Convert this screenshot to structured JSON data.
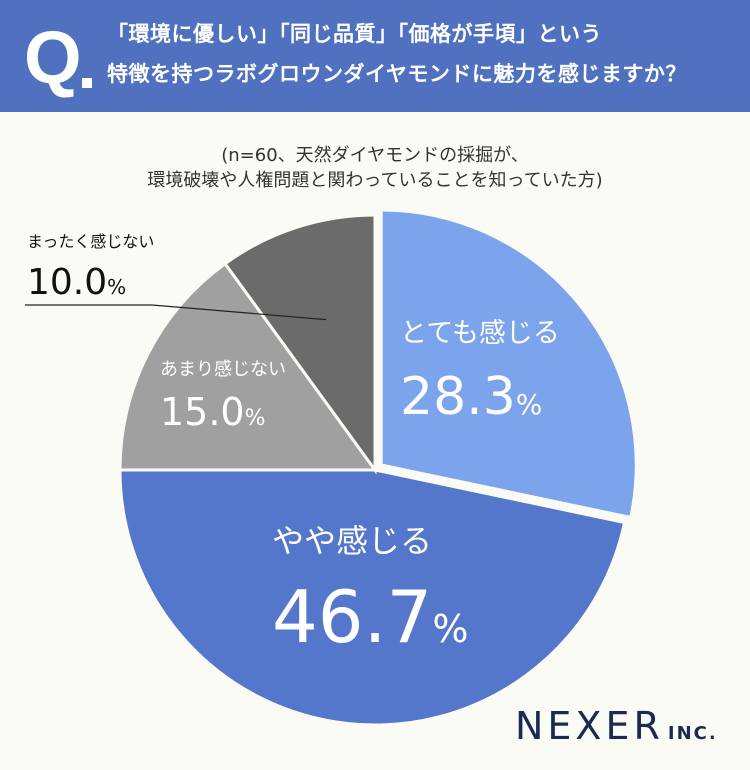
{
  "question": {
    "mark": "Q",
    "line1": "「環境に優しい」「同じ品質」「価格が手頃」という",
    "line2": "特徴を持つラボグロウンダイヤモンドに魅力を感じますか？"
  },
  "note": {
    "line1": "(n=60、天然ダイヤモンドの採掘が、",
    "line2": "環境破壊や人権問題と関わっていることを知っていた方)"
  },
  "chart_data": {
    "type": "pie",
    "start": "12 o'clock, clockwise",
    "slices": [
      {
        "label": "とても感じる",
        "value": 28.3,
        "display": "28.3",
        "color": "#7ba4ec",
        "exploded": true
      },
      {
        "label": "やや感じる",
        "value": 46.7,
        "display": "46.7",
        "color": "#5477cc",
        "exploded": false
      },
      {
        "label": "あまり感じない",
        "value": 15.0,
        "display": "15.0",
        "color": "#a0a0a0",
        "exploded": false
      },
      {
        "label": "まったく感じない",
        "value": 10.0,
        "display": "10.0",
        "color": "#6b6b6b",
        "exploded": false
      }
    ],
    "unit": "%"
  },
  "logo": {
    "main": "NEXER",
    "sub": "INC."
  }
}
